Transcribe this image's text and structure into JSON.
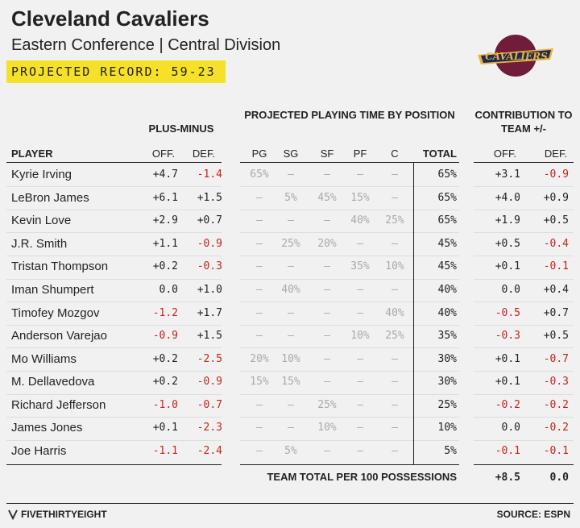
{
  "header": {
    "title": "Cleveland Cavaliers",
    "subtitle": "Eastern Conference | Central Division",
    "record": "PROJECTED RECORD: 59-23",
    "logo_text": "CAVALIERS"
  },
  "table": {
    "groups": [
      "PLUS-MINUS",
      "PROJECTED PLAYING TIME BY POSITION",
      "CONTRIBUTION TO TEAM +/-"
    ],
    "columns": [
      "PLAYER",
      "OFF.",
      "DEF.",
      "PG",
      "SG",
      "SF",
      "PF",
      "C",
      "TOTAL",
      "OFF.",
      "DEF."
    ],
    "rows": [
      [
        "Kyrie Irving",
        "+4.7",
        "-1.4",
        "65%",
        "—",
        "—",
        "—",
        "—",
        "65%",
        "+3.1",
        "-0.9"
      ],
      [
        "LeBron James",
        "+6.1",
        "+1.5",
        "—",
        "5%",
        "45%",
        "15%",
        "—",
        "65%",
        "+4.0",
        "+0.9"
      ],
      [
        "Kevin Love",
        "+2.9",
        "+0.7",
        "—",
        "—",
        "—",
        "40%",
        "25%",
        "65%",
        "+1.9",
        "+0.5"
      ],
      [
        "J.R. Smith",
        "+1.1",
        "-0.9",
        "—",
        "25%",
        "20%",
        "—",
        "—",
        "45%",
        "+0.5",
        "-0.4"
      ],
      [
        "Tristan Thompson",
        "+0.2",
        "-0.3",
        "—",
        "—",
        "—",
        "35%",
        "10%",
        "45%",
        "+0.1",
        "-0.1"
      ],
      [
        "Iman Shumpert",
        "0.0",
        "+1.0",
        "—",
        "40%",
        "—",
        "—",
        "—",
        "40%",
        "0.0",
        "+0.4"
      ],
      [
        "Timofey Mozgov",
        "-1.2",
        "+1.7",
        "—",
        "—",
        "—",
        "—",
        "40%",
        "40%",
        "-0.5",
        "+0.7"
      ],
      [
        "Anderson Varejao",
        "-0.9",
        "+1.5",
        "—",
        "—",
        "—",
        "10%",
        "25%",
        "35%",
        "-0.3",
        "+0.5"
      ],
      [
        "Mo Williams",
        "+0.2",
        "-2.5",
        "20%",
        "10%",
        "—",
        "—",
        "—",
        "30%",
        "+0.1",
        "-0.7"
      ],
      [
        "M. Dellavedova",
        "+0.2",
        "-0.9",
        "15%",
        "15%",
        "—",
        "—",
        "—",
        "30%",
        "+0.1",
        "-0.3"
      ],
      [
        "Richard Jefferson",
        "-1.0",
        "-0.7",
        "—",
        "—",
        "25%",
        "—",
        "—",
        "25%",
        "-0.2",
        "-0.2"
      ],
      [
        "James Jones",
        "+0.1",
        "-2.3",
        "—",
        "—",
        "10%",
        "—",
        "—",
        "10%",
        "0.0",
        "-0.2"
      ],
      [
        "Joe Harris",
        "-1.1",
        "-2.4",
        "—",
        "5%",
        "—",
        "—",
        "—",
        "5%",
        "-0.1",
        "-0.1"
      ]
    ],
    "total": {
      "label": "TEAM TOTAL PER 100 POSSESSIONS",
      "off": "+8.5",
      "def": "0.0"
    }
  },
  "footer": {
    "brand": "FIVETHIRTYEIGHT",
    "source": "SOURCE: ESPN"
  }
}
